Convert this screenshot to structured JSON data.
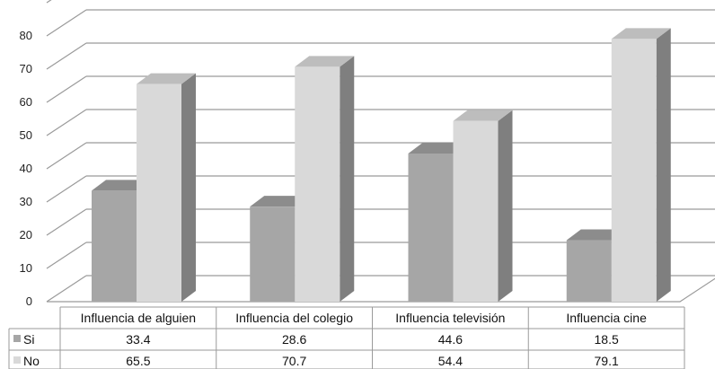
{
  "chart_data": {
    "type": "bar",
    "categories": [
      "Influencia de alguien",
      "Influencia del colegio",
      "Influencia televisión",
      "Influencia cine"
    ],
    "series": [
      {
        "name": "Si",
        "values": [
          33.4,
          28.6,
          44.6,
          18.5
        ],
        "display": [
          "33.4",
          "28.6",
          "44.6",
          "18.5"
        ],
        "color": "#a6a6a6"
      },
      {
        "name": "No",
        "values": [
          65.5,
          70.7,
          54.4,
          79.1
        ],
        "display": [
          "65.5",
          "70.7",
          "54.4",
          "79.1"
        ],
        "color": "#d9d9d9"
      }
    ],
    "y_ticks": [
      "0",
      "10",
      "20",
      "30",
      "40",
      "50",
      "60",
      "70",
      "80"
    ],
    "ylim": [
      0,
      90
    ],
    "style": "3d-clustered-column",
    "grid": true,
    "legend": "data-table",
    "colors": {
      "gridline": "#9a9a9a",
      "side": "#7f7f7f",
      "top_si": "#8c8c8c",
      "top_no": "#bdbdbd",
      "table_border": "#9a9a9a"
    }
  }
}
